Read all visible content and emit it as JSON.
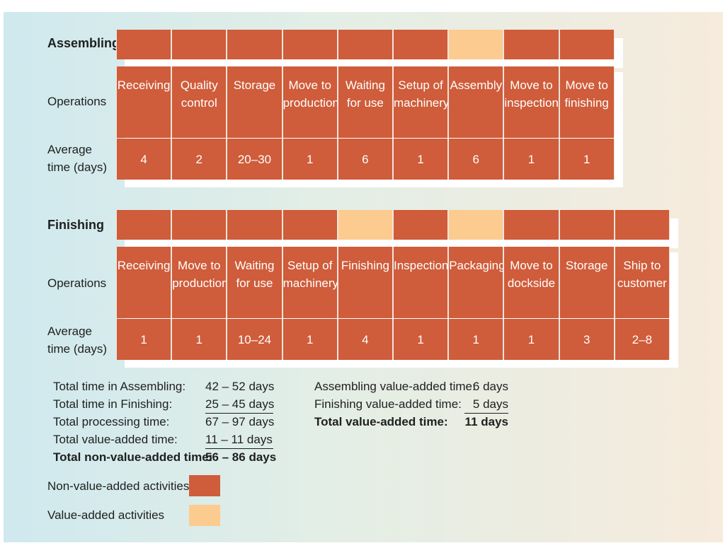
{
  "assembling": {
    "title": "Assembling",
    "operations_label": "Operations",
    "avg_time_label": [
      "Average",
      "time (days)"
    ],
    "activities": [
      {
        "name": [
          "Receiving"
        ],
        "time": "4",
        "value_added": false
      },
      {
        "name": [
          "Quality",
          "control"
        ],
        "time": "2",
        "value_added": false
      },
      {
        "name": [
          "Storage"
        ],
        "time": "20–30",
        "value_added": false
      },
      {
        "name": [
          "Move to",
          "production"
        ],
        "time": "1",
        "value_added": false
      },
      {
        "name": [
          "Waiting",
          "for use"
        ],
        "time": "6",
        "value_added": false
      },
      {
        "name": [
          "Setup of",
          "machinery"
        ],
        "time": "1",
        "value_added": false
      },
      {
        "name": [
          "Assembly"
        ],
        "time": "6",
        "value_added": true
      },
      {
        "name": [
          "Move to",
          "inspection"
        ],
        "time": "1",
        "value_added": false
      },
      {
        "name": [
          "Move to",
          "finishing"
        ],
        "time": "1",
        "value_added": false
      }
    ]
  },
  "finishing": {
    "title": "Finishing",
    "operations_label": "Operations",
    "avg_time_label": [
      "Average",
      "time (days)"
    ],
    "activities": [
      {
        "name": [
          "Receiving"
        ],
        "time": "1",
        "value_added": false
      },
      {
        "name": [
          "Move to",
          "production"
        ],
        "time": "1",
        "value_added": false
      },
      {
        "name": [
          "Waiting",
          "for use"
        ],
        "time": "10–24",
        "value_added": false
      },
      {
        "name": [
          "Setup of",
          "machinery"
        ],
        "time": "1",
        "value_added": false
      },
      {
        "name": [
          "Finishing"
        ],
        "time": "4",
        "value_added": true
      },
      {
        "name": [
          "Inspection"
        ],
        "time": "1",
        "value_added": false
      },
      {
        "name": [
          "Packaging"
        ],
        "time": "1",
        "value_added": true
      },
      {
        "name": [
          "Move to",
          "dockside"
        ],
        "time": "1",
        "value_added": false
      },
      {
        "name": [
          "Storage"
        ],
        "time": "3",
        "value_added": false
      },
      {
        "name": [
          "Ship to",
          "customer"
        ],
        "time": "2–8",
        "value_added": false
      }
    ]
  },
  "totals": [
    {
      "label": "Total time in Assembling:",
      "value": "42 – 52 days",
      "bold": false,
      "underline": false
    },
    {
      "label": "Total time in Finishing:",
      "value": "25 – 45 days",
      "bold": false,
      "underline": true
    },
    {
      "label": "Total processing time:",
      "value": "67 – 97 days",
      "bold": false,
      "underline": false
    },
    {
      "label": "Total value-added time:",
      "value": "11 – 11 days",
      "bold": false,
      "underline": true
    },
    {
      "label": "Total non-value-added time:",
      "value": "56 – 86 days",
      "bold": true,
      "underline": false
    }
  ],
  "value_added_summary": [
    {
      "label": "Assembling value-added time:",
      "value": "6 days",
      "bold": false,
      "underline": false
    },
    {
      "label": "Finishing value-added time:",
      "value": "5 days",
      "bold": false,
      "underline": true
    },
    {
      "label": "Total value-added time:",
      "value": "11 days",
      "bold": true,
      "underline": false
    }
  ],
  "legend": [
    {
      "label": "Non-value-added activities",
      "color": "#cf5c3a"
    },
    {
      "label": "Value-added activities",
      "color": "#fccb8f"
    }
  ],
  "colors": {
    "non_value_added": "#cf5c3a",
    "value_added": "#fccb8f"
  }
}
